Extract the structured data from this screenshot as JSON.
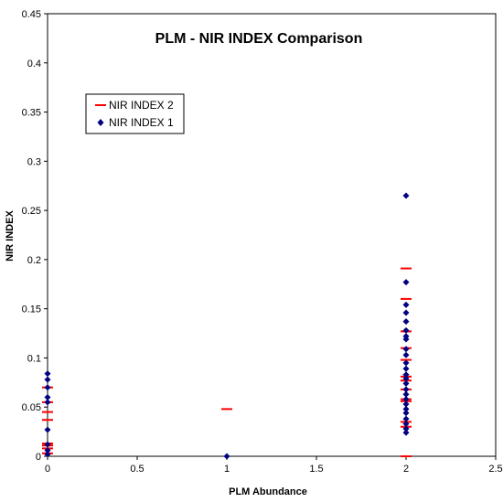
{
  "chart_data": {
    "type": "scatter",
    "title": "PLM - NIR INDEX Comparison",
    "xlabel": "PLM Abundance",
    "ylabel": "NIR INDEX",
    "xlim": [
      0,
      2.5
    ],
    "ylim": [
      0,
      0.45
    ],
    "x_ticks": [
      "0",
      "0.5",
      "1",
      "1.5",
      "2",
      "2.5"
    ],
    "y_ticks": [
      "0",
      "0.05",
      "0.1",
      "0.15",
      "0.2",
      "0.25",
      "0.3",
      "0.35",
      "0.4",
      "0.45"
    ],
    "grid": false,
    "legend_position": "upper-left",
    "series": [
      {
        "name": "NIR INDEX 2",
        "marker": "dash",
        "color": "#ff0000",
        "points": [
          [
            0,
            0.07
          ],
          [
            0,
            0.055
          ],
          [
            0,
            0.045
          ],
          [
            0,
            0.037
          ],
          [
            0,
            0.013
          ],
          [
            0,
            0.011
          ],
          [
            0,
            0.008
          ],
          [
            0,
            0.003
          ],
          [
            1,
            0.048
          ],
          [
            2,
            0.191
          ],
          [
            2,
            0.16
          ],
          [
            2,
            0.127
          ],
          [
            2,
            0.11
          ],
          [
            2,
            0.098
          ],
          [
            2,
            0.081
          ],
          [
            2,
            0.077
          ],
          [
            2,
            0.068
          ],
          [
            2,
            0.058
          ],
          [
            2,
            0.056
          ],
          [
            2,
            0.035
          ],
          [
            2,
            0.03
          ],
          [
            2,
            0.0
          ]
        ]
      },
      {
        "name": "NIR INDEX 1",
        "marker": "diamond",
        "color": "#000080",
        "points": [
          [
            0,
            0.084
          ],
          [
            0,
            0.078
          ],
          [
            0,
            0.07
          ],
          [
            0,
            0.06
          ],
          [
            0,
            0.055
          ],
          [
            0,
            0.027
          ],
          [
            0,
            0.012
          ],
          [
            0,
            0.006
          ],
          [
            0,
            0.002
          ],
          [
            1,
            0.0
          ],
          [
            2,
            0.265
          ],
          [
            2,
            0.177
          ],
          [
            2,
            0.154
          ],
          [
            2,
            0.146
          ],
          [
            2,
            0.137
          ],
          [
            2,
            0.128
          ],
          [
            2,
            0.122
          ],
          [
            2,
            0.119
          ],
          [
            2,
            0.109
          ],
          [
            2,
            0.103
          ],
          [
            2,
            0.095
          ],
          [
            2,
            0.089
          ],
          [
            2,
            0.083
          ],
          [
            2,
            0.079
          ],
          [
            2,
            0.074
          ],
          [
            2,
            0.068
          ],
          [
            2,
            0.063
          ],
          [
            2,
            0.058
          ],
          [
            2,
            0.053
          ],
          [
            2,
            0.048
          ],
          [
            2,
            0.044
          ],
          [
            2,
            0.038
          ],
          [
            2,
            0.033
          ],
          [
            2,
            0.028
          ],
          [
            2,
            0.024
          ]
        ]
      }
    ]
  }
}
